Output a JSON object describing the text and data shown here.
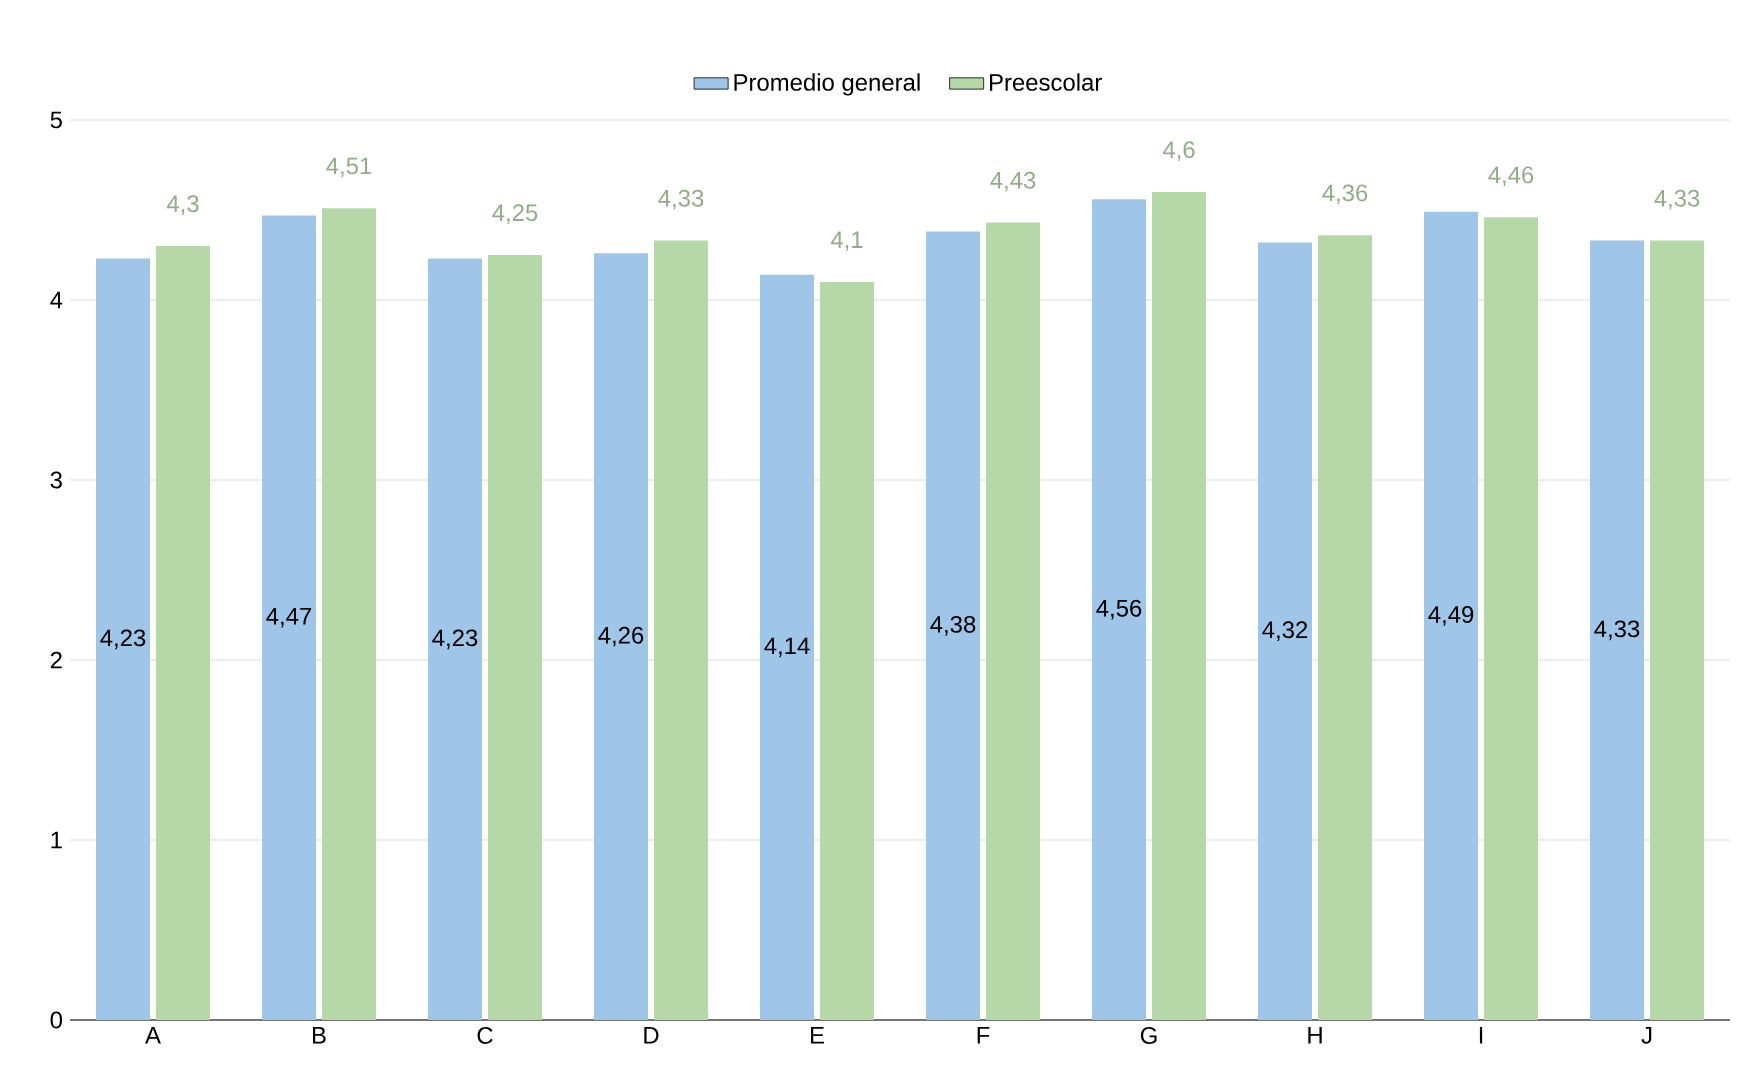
{
  "chart_data": {
    "type": "bar",
    "categories": [
      "A",
      "B",
      "C",
      "D",
      "E",
      "F",
      "G",
      "H",
      "I",
      "J"
    ],
    "series": [
      {
        "name": "Promedio general",
        "color": "#9fc5e8",
        "values": [
          4.23,
          4.47,
          4.23,
          4.26,
          4.14,
          4.38,
          4.56,
          4.32,
          4.49,
          4.33
        ],
        "value_labels": [
          "4,23",
          "4,47",
          "4,23",
          "4,26",
          "4,14",
          "4,38",
          "4,56",
          "4,32",
          "4,49",
          "4,33"
        ]
      },
      {
        "name": "Preescolar",
        "color": "#b6d7a8",
        "values": [
          4.3,
          4.51,
          4.25,
          4.33,
          4.1,
          4.43,
          4.6,
          4.36,
          4.46,
          4.33
        ],
        "value_labels": [
          "4,3",
          "4,51",
          "4,25",
          "4,33",
          "4,1",
          "4,43",
          "4,6",
          "4,36",
          "4,46",
          "4,33"
        ]
      }
    ],
    "ylim": [
      0,
      5
    ],
    "yticks": [
      0,
      1,
      2,
      3,
      4,
      5
    ],
    "grid": "y",
    "legend": "top"
  }
}
